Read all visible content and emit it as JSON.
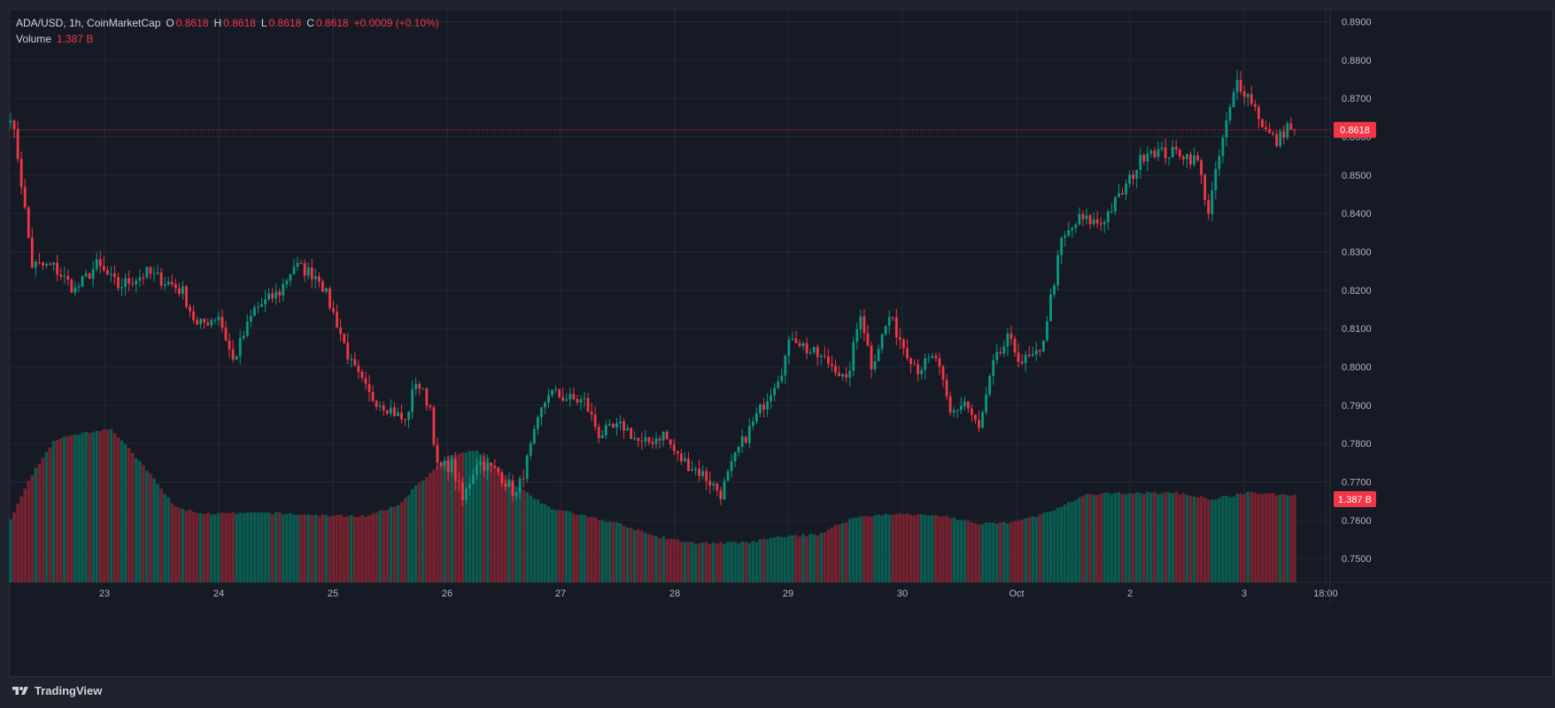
{
  "legend": {
    "symbol": "ADA/USD, 1h, CoinMarketCap",
    "open_label": "O",
    "open": "0.8618",
    "high_label": "H",
    "high": "0.8618",
    "low_label": "L",
    "low": "0.8618",
    "close_label": "C",
    "close": "0.8618",
    "change": "+0.0009 (+0.10%)",
    "volume_label": "Volume",
    "volume": "1.387 B"
  },
  "price_badge": "0.8618",
  "volume_badge": "1.387 B",
  "brand": "TradingView",
  "colors": {
    "up": "#089981",
    "down": "#f23645",
    "background": "#161a25",
    "grid": "#242833",
    "text": "#d1d4dc"
  },
  "chart_data": {
    "type": "candlestick",
    "symbol": "ADA/USD",
    "interval": "1h",
    "y_ticks": [
      "0.8900",
      "0.8800",
      "0.8700",
      "0.8600",
      "0.8500",
      "0.8400",
      "0.8300",
      "0.8200",
      "0.8100",
      "0.8000",
      "0.7900",
      "0.7800",
      "0.7700",
      "0.7600",
      "0.7500"
    ],
    "ylim": [
      0.7475,
      0.8915
    ],
    "x_ticks": [
      "23",
      "24",
      "25",
      "26",
      "27",
      "28",
      "29",
      "30",
      "Oct",
      "2",
      "3",
      "18:00"
    ],
    "grid": true,
    "last_price": 0.8618,
    "last_volume": "1.387 B",
    "anchors": [
      {
        "t": 0,
        "p": 0.866
      },
      {
        "t": 2,
        "p": 0.855
      },
      {
        "t": 6,
        "p": 0.8265
      },
      {
        "t": 12,
        "p": 0.826
      },
      {
        "t": 18,
        "p": 0.82
      },
      {
        "t": 24,
        "p": 0.8265
      },
      {
        "t": 30,
        "p": 0.821
      },
      {
        "t": 38,
        "p": 0.8245
      },
      {
        "t": 45,
        "p": 0.8215
      },
      {
        "t": 48,
        "p": 0.8195
      },
      {
        "t": 52,
        "p": 0.8105
      },
      {
        "t": 58,
        "p": 0.8135
      },
      {
        "t": 62,
        "p": 0.8015
      },
      {
        "t": 68,
        "p": 0.815
      },
      {
        "t": 75,
        "p": 0.8195
      },
      {
        "t": 79,
        "p": 0.8265
      },
      {
        "t": 86,
        "p": 0.8235
      },
      {
        "t": 91,
        "p": 0.8115
      },
      {
        "t": 95,
        "p": 0.8005
      },
      {
        "t": 100,
        "p": 0.7925
      },
      {
        "t": 106,
        "p": 0.789
      },
      {
        "t": 110,
        "p": 0.7855
      },
      {
        "t": 113,
        "p": 0.7965
      },
      {
        "t": 117,
        "p": 0.7895
      },
      {
        "t": 119,
        "p": 0.7735
      },
      {
        "t": 123,
        "p": 0.7745
      },
      {
        "t": 126,
        "p": 0.765
      },
      {
        "t": 130,
        "p": 0.7755
      },
      {
        "t": 136,
        "p": 0.7725
      },
      {
        "t": 141,
        "p": 0.7665
      },
      {
        "t": 144,
        "p": 0.7755
      },
      {
        "t": 148,
        "p": 0.7885
      },
      {
        "t": 150,
        "p": 0.7935
      },
      {
        "t": 156,
        "p": 0.7915
      },
      {
        "t": 160,
        "p": 0.791
      },
      {
        "t": 164,
        "p": 0.7825
      },
      {
        "t": 171,
        "p": 0.7845
      },
      {
        "t": 176,
        "p": 0.7795
      },
      {
        "t": 182,
        "p": 0.7825
      },
      {
        "t": 186,
        "p": 0.7765
      },
      {
        "t": 193,
        "p": 0.772
      },
      {
        "t": 198,
        "p": 0.767
      },
      {
        "t": 203,
        "p": 0.7785
      },
      {
        "t": 210,
        "p": 0.7905
      },
      {
        "t": 215,
        "p": 0.7995
      },
      {
        "t": 218,
        "p": 0.8085
      },
      {
        "t": 222,
        "p": 0.8045
      },
      {
        "t": 230,
        "p": 0.8
      },
      {
        "t": 233,
        "p": 0.7955
      },
      {
        "t": 237,
        "p": 0.8145
      },
      {
        "t": 240,
        "p": 0.8005
      },
      {
        "t": 245,
        "p": 0.813
      },
      {
        "t": 249,
        "p": 0.8055
      },
      {
        "t": 253,
        "p": 0.7995
      },
      {
        "t": 258,
        "p": 0.8025
      },
      {
        "t": 262,
        "p": 0.7875
      },
      {
        "t": 266,
        "p": 0.791
      },
      {
        "t": 270,
        "p": 0.7835
      },
      {
        "t": 274,
        "p": 0.8005
      },
      {
        "t": 278,
        "p": 0.807
      },
      {
        "t": 282,
        "p": 0.8015
      },
      {
        "t": 287,
        "p": 0.803
      },
      {
        "t": 293,
        "p": 0.8325
      },
      {
        "t": 298,
        "p": 0.8385
      },
      {
        "t": 304,
        "p": 0.8375
      },
      {
        "t": 310,
        "p": 0.8455
      },
      {
        "t": 317,
        "p": 0.857
      },
      {
        "t": 322,
        "p": 0.8555
      },
      {
        "t": 326,
        "p": 0.856
      },
      {
        "t": 331,
        "p": 0.8535
      },
      {
        "t": 334,
        "p": 0.8405
      },
      {
        "t": 338,
        "p": 0.8595
      },
      {
        "t": 342,
        "p": 0.8745
      },
      {
        "t": 346,
        "p": 0.8695
      },
      {
        "t": 350,
        "p": 0.8615
      },
      {
        "t": 353,
        "p": 0.8585
      },
      {
        "t": 356,
        "p": 0.8628
      },
      {
        "t": 358,
        "p": 0.8618
      }
    ],
    "volume_anchors": [
      {
        "t": 0,
        "v": 0.15
      },
      {
        "t": 6,
        "v": 0.26
      },
      {
        "t": 12,
        "v": 0.34
      },
      {
        "t": 20,
        "v": 0.36
      },
      {
        "t": 28,
        "v": 0.37
      },
      {
        "t": 38,
        "v": 0.27
      },
      {
        "t": 46,
        "v": 0.18
      },
      {
        "t": 54,
        "v": 0.165
      },
      {
        "t": 72,
        "v": 0.167
      },
      {
        "t": 90,
        "v": 0.16
      },
      {
        "t": 100,
        "v": 0.16
      },
      {
        "t": 108,
        "v": 0.185
      },
      {
        "t": 114,
        "v": 0.24
      },
      {
        "t": 122,
        "v": 0.3
      },
      {
        "t": 130,
        "v": 0.32
      },
      {
        "t": 140,
        "v": 0.24
      },
      {
        "t": 150,
        "v": 0.18
      },
      {
        "t": 160,
        "v": 0.16
      },
      {
        "t": 170,
        "v": 0.14
      },
      {
        "t": 180,
        "v": 0.11
      },
      {
        "t": 190,
        "v": 0.095
      },
      {
        "t": 205,
        "v": 0.095
      },
      {
        "t": 215,
        "v": 0.11
      },
      {
        "t": 225,
        "v": 0.115
      },
      {
        "t": 235,
        "v": 0.155
      },
      {
        "t": 245,
        "v": 0.165
      },
      {
        "t": 260,
        "v": 0.16
      },
      {
        "t": 270,
        "v": 0.14
      },
      {
        "t": 280,
        "v": 0.145
      },
      {
        "t": 290,
        "v": 0.17
      },
      {
        "t": 300,
        "v": 0.21
      },
      {
        "t": 310,
        "v": 0.215
      },
      {
        "t": 325,
        "v": 0.215
      },
      {
        "t": 335,
        "v": 0.2
      },
      {
        "t": 345,
        "v": 0.215
      },
      {
        "t": 358,
        "v": 0.21
      }
    ],
    "n_bars": 359
  }
}
